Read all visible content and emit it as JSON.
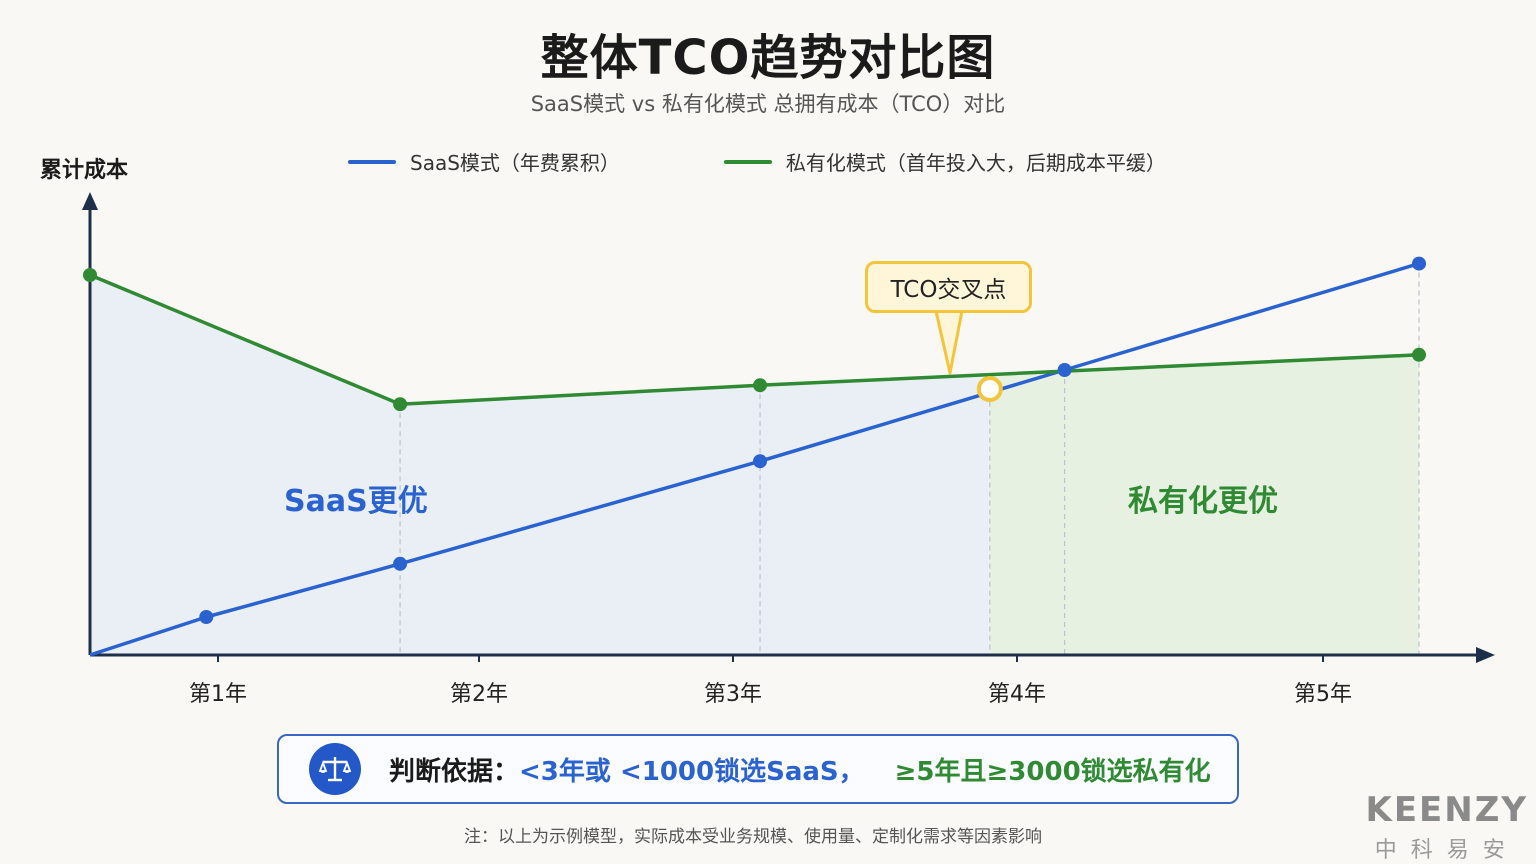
{
  "title": "整体TCO趋势对比图",
  "subtitle": "SaaS模式 vs 私有化模式 总拥有成本（TCO）对比",
  "callout": "TCO交叉点",
  "region_labels": {
    "saas": "SaaS更优",
    "private": "私有化更优"
  },
  "rule": {
    "prefix": "判断依据：",
    "saas_part": "<3年或 <1000锁选SaaS，",
    "private_part": "≥5年且≥3000锁选私有化"
  },
  "note": "注：以上为示例模型，实际成本受业务规模、使用量、定制化需求等因素影响",
  "brand": {
    "en": "KEENZY",
    "cn": "中科易安"
  },
  "colors": {
    "saas": "#2a62cf",
    "private": "#2f8a33",
    "crossover": "#f2c53b",
    "axis": "#1e2f4a"
  },
  "icons": {
    "rule": "scale-balance-icon"
  },
  "chart_data": {
    "type": "line",
    "ylabel": "累计成本",
    "x_ticks": [
      {
        "x": 1.0,
        "label": "第1年"
      },
      {
        "x": 2.0,
        "label": "第2年"
      },
      {
        "x": 3.0,
        "label": "第3年"
      },
      {
        "x": 4.0,
        "label": "第4年"
      },
      {
        "x": 5.0,
        "label": "第5年"
      }
    ],
    "xlim": [
      0.58,
      5.56
    ],
    "ylim": [
      0,
      100
    ],
    "grid": false,
    "legend_position": "top",
    "series": [
      {
        "name": "SaaS模式（年费累积）",
        "color": "#2a62cf",
        "points": [
          [
            0.58,
            0
          ],
          [
            1.0,
            10
          ],
          [
            1.7,
            24
          ],
          [
            3.0,
            51
          ],
          [
            4.1,
            75
          ],
          [
            5.38,
            103
          ]
        ]
      },
      {
        "name": "私有化模式（首年投入大，后期成本平缓）",
        "color": "#2f8a33",
        "points": [
          [
            0.58,
            100
          ],
          [
            1.7,
            66
          ],
          [
            3.0,
            71
          ],
          [
            5.38,
            79
          ]
        ]
      }
    ],
    "crossover": {
      "x": 3.83,
      "y": 70
    },
    "guide_x": [
      1.7,
      3.0,
      3.83,
      4.1,
      5.38
    ]
  }
}
